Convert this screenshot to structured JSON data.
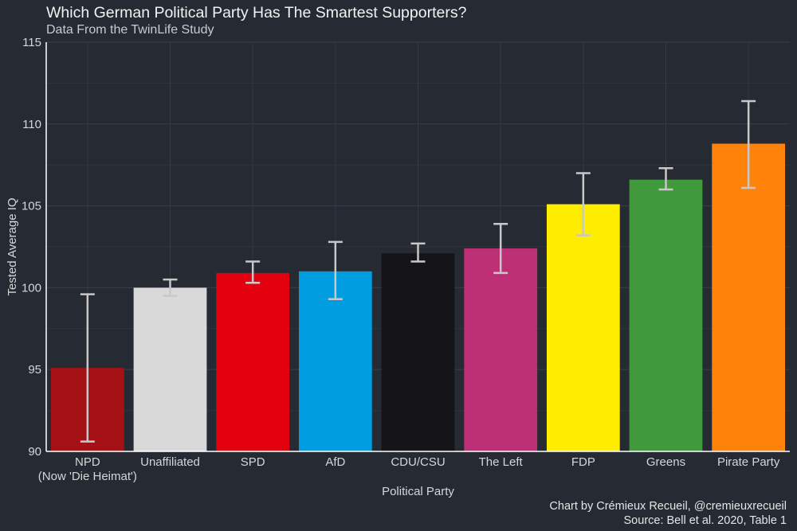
{
  "header": {
    "title": "Which German Political Party Has The Smartest Supporters?",
    "subtitle": "Data From the TwinLife Study"
  },
  "footer": {
    "credit": "Chart by Crémieux Recueil, @cremieuxrecueil",
    "source": "Source: Bell et al. 2020, Table 1"
  },
  "chart_data": {
    "type": "bar",
    "title": "Which German Political Party Has The Smartest Supporters?",
    "subtitle": "Data From the TwinLife Study",
    "xlabel": "Political Party",
    "ylabel": "Tested Average IQ",
    "ylim": [
      90,
      115
    ],
    "yticks": [
      "90",
      "95",
      "100",
      "105",
      "110",
      "115"
    ],
    "grid": true,
    "categories": [
      [
        "NPD",
        "(Now 'Die Heimat')"
      ],
      [
        "Unaffiliated"
      ],
      [
        "SPD"
      ],
      [
        "AfD"
      ],
      [
        "CDU/CSU"
      ],
      [
        "The Left"
      ],
      [
        "FDP"
      ],
      [
        "Greens"
      ],
      [
        "Pirate Party"
      ]
    ],
    "values": [
      95.1,
      100.0,
      100.9,
      101.0,
      102.1,
      102.4,
      105.1,
      106.6,
      108.8
    ],
    "error_low": [
      90.6,
      99.5,
      100.3,
      99.3,
      101.6,
      100.9,
      103.2,
      106.0,
      106.1
    ],
    "error_high": [
      99.6,
      100.5,
      101.6,
      102.8,
      102.7,
      103.9,
      107.0,
      107.3,
      111.4
    ],
    "colors": [
      "#a51215",
      "#d9d9d9",
      "#e3000f",
      "#009ee0",
      "#151518",
      "#be3075",
      "#ffed00",
      "#409a3c",
      "#ff820a"
    ],
    "error_bar_color": "#c8c8c8"
  }
}
